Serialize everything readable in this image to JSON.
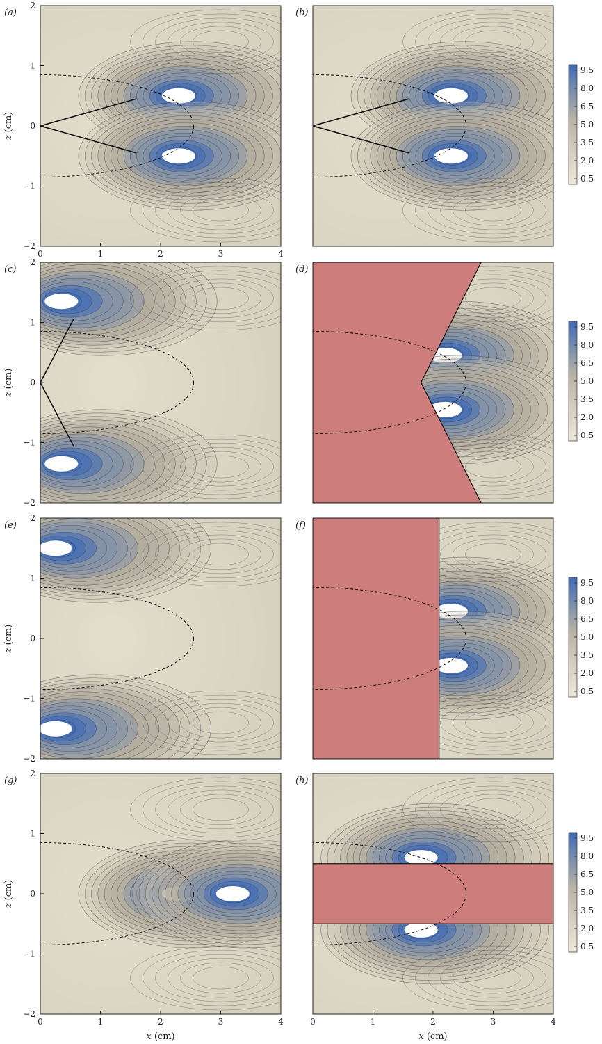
{
  "figure": {
    "colorbar_ticks": [
      "9.5",
      "8.0",
      "6.5",
      "5.0",
      "3.5",
      "2.0",
      "0.5"
    ],
    "colors": {
      "low": "#efe9d8",
      "mid": "#b7b2a5",
      "high": "#3f6bb6",
      "obstacle": "#cd7e7c",
      "contour_line": "#3a3a3a"
    },
    "x_axis_label": "x",
    "x_axis_unit": "(cm)",
    "z_axis_label": "z",
    "z_axis_unit": "(cm)"
  },
  "chart_data": [
    {
      "type": "heatmap",
      "panel": "(a)",
      "xlim": [
        0,
        4
      ],
      "ylim": [
        -2,
        2
      ],
      "xticks": [
        "0",
        "1",
        "2",
        "3",
        "4"
      ],
      "yticks": [
        "2",
        "1",
        "0",
        "−1",
        "−2"
      ],
      "obstacle": "none",
      "notes": "dashed elliptical contour and wedge outline; high-value lobes near x≈2.1–2.7, z≈±0.5"
    },
    {
      "type": "heatmap",
      "panel": "(b)",
      "xlim": [
        0,
        4
      ],
      "ylim": [
        -2,
        2
      ],
      "xticks": [],
      "yticks": [],
      "obstacle": "none",
      "notes": "same structure as (a)"
    },
    {
      "type": "heatmap",
      "panel": "(c)",
      "xlim": [
        0,
        4
      ],
      "ylim": [
        -2,
        2
      ],
      "xticks": [],
      "yticks": [
        "2",
        "1",
        "0",
        "−1",
        "−2"
      ],
      "obstacle": "none",
      "notes": "high-value lobes near x≈0–0.7, z≈±1.2 to ±1.8"
    },
    {
      "type": "heatmap",
      "panel": "(d)",
      "xlim": [
        0,
        4
      ],
      "ylim": [
        -2,
        2
      ],
      "xticks": [],
      "yticks": [],
      "obstacle": "wedge region to left of line from (2.8,2) to (1.8,0) to (2.8,-2)",
      "notes": "high-value lobes near x≈2.0–2.5, z≈±0.4"
    },
    {
      "type": "heatmap",
      "panel": "(e)",
      "xlim": [
        0,
        4
      ],
      "ylim": [
        -2,
        2
      ],
      "xticks": [],
      "yticks": [
        "2",
        "1",
        "0",
        "−1",
        "−2"
      ],
      "obstacle": "none",
      "notes": "high-value lobes near x≈0–0.5, z≈±1.5"
    },
    {
      "type": "heatmap",
      "panel": "(f)",
      "xlim": [
        0,
        4
      ],
      "ylim": [
        -2,
        2
      ],
      "xticks": [],
      "yticks": [],
      "obstacle": "rectangle x∈[0,2.1], z∈[-2,2]",
      "notes": "high-value lobes near x≈2.1–2.6, z≈±0.4"
    },
    {
      "type": "heatmap",
      "panel": "(g)",
      "xlim": [
        0,
        4
      ],
      "ylim": [
        -2,
        2
      ],
      "xticks": [
        "0",
        "1",
        "2",
        "3",
        "4"
      ],
      "yticks": [
        "2",
        "1",
        "0",
        "−1",
        "−2"
      ],
      "obstacle": "none",
      "notes": "high-value lobes along z≈0 near x≈2.0–2.6 and x≈2.9–3.5"
    },
    {
      "type": "heatmap",
      "panel": "(h)",
      "xlim": [
        0,
        4
      ],
      "ylim": [
        -2,
        2
      ],
      "xticks": [
        "0",
        "1",
        "2",
        "3",
        "4"
      ],
      "yticks": [],
      "obstacle": "slab z∈[-0.5,0.5], x∈[0,4]",
      "notes": "high-value bands just outside slab near x≈1–2.5"
    }
  ]
}
